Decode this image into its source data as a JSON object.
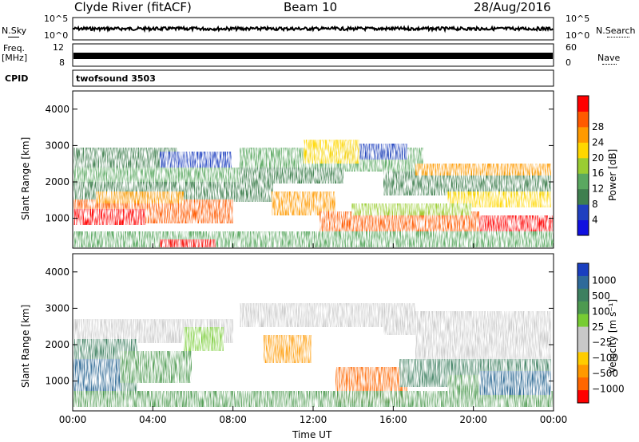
{
  "header": {
    "station": "Clyde River (fitACF)",
    "beam": "Beam 10",
    "date": "28/Aug/2016"
  },
  "panels_small": {
    "nsky": {
      "label": "N.Sky",
      "ticks": [
        "10^5",
        "10^0"
      ]
    },
    "nsearch": {
      "label": "N.Search",
      "ticks": [
        "10^5",
        "10^0"
      ]
    },
    "freq": {
      "label_top": "Freq.",
      "label_unit": "[MHz]",
      "ticks": [
        "12",
        "8"
      ]
    },
    "nave": {
      "label": "Nave",
      "ticks": [
        "60",
        "0"
      ]
    },
    "cpid": {
      "label": "CPID",
      "value": "twofsound 3503"
    }
  },
  "chart_data": [
    {
      "type": "heatmap",
      "name": "power",
      "ylabel": "Slant Range [km]",
      "xlabel": "",
      "y_ticks": [
        1000,
        2000,
        3000,
        4000
      ],
      "ylim": [
        180,
        4500
      ],
      "colorbar": {
        "label": "Power [dB]",
        "ticks": [
          4,
          8,
          12,
          16,
          20,
          24,
          28
        ],
        "colors": [
          "#1010e0",
          "#2040c0",
          "#3f7f4f",
          "#5aa860",
          "#9acd32",
          "#ffd700",
          "#ff9a00",
          "#ff5a00",
          "#ff0000"
        ]
      }
    },
    {
      "type": "heatmap",
      "name": "velocity",
      "ylabel": "Slant Range [km]",
      "xlabel": "Time UT",
      "y_ticks": [
        1000,
        2000,
        3000,
        4000
      ],
      "ylim": [
        180,
        4500
      ],
      "x_ticks": [
        "00:00",
        "04:00",
        "08:00",
        "12:00",
        "16:00",
        "20:00",
        "00:00"
      ],
      "colorbar": {
        "label": "Velocity [m s⁻¹]",
        "ticks": [
          "1000",
          "500",
          "100",
          "25",
          "−25",
          "−100",
          "−500",
          "−1000"
        ],
        "colors": [
          "#1a3fc0",
          "#2f6a9a",
          "#3d8060",
          "#4d9a50",
          "#77cc33",
          "#c8c8c8",
          "#c8c8c8",
          "#ffcc00",
          "#ff9900",
          "#ff6600",
          "#ff0000"
        ]
      }
    }
  ]
}
